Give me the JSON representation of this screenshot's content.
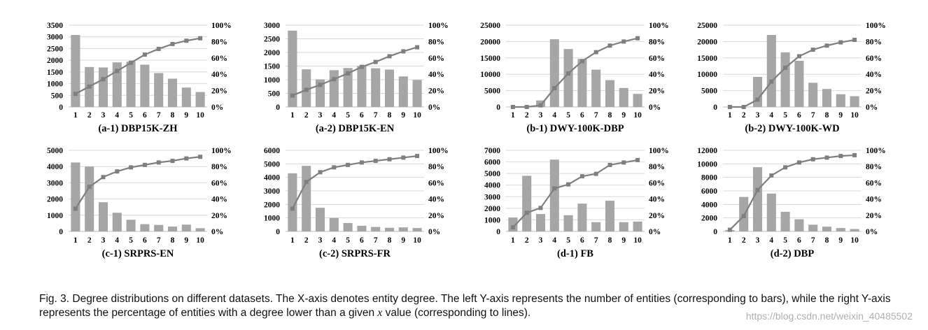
{
  "chart_data": [
    {
      "type": "bar",
      "title": "(a-1) DBP15K-ZH",
      "categories": [
        "1",
        "2",
        "3",
        "4",
        "5",
        "6",
        "7",
        "8",
        "9",
        "10"
      ],
      "ylim": [
        0,
        3500
      ],
      "yticks": [
        "0",
        "500",
        "1000",
        "1500",
        "2000",
        "2500",
        "3000",
        "3500"
      ],
      "y2lim": [
        0,
        100
      ],
      "y2ticks": [
        "0%",
        "20%",
        "40%",
        "60%",
        "80%",
        "100%"
      ],
      "series": [
        {
          "kind": "bar",
          "values": [
            3080,
            1710,
            1690,
            1910,
            1940,
            1810,
            1450,
            1210,
            830,
            640
          ]
        },
        {
          "kind": "line",
          "values": [
            16,
            25,
            34,
            44,
            54,
            64,
            71,
            77,
            81,
            84
          ]
        }
      ]
    },
    {
      "type": "bar",
      "title": "(a-2) DBP15K-EN",
      "categories": [
        "1",
        "2",
        "3",
        "4",
        "5",
        "6",
        "7",
        "8",
        "9",
        "10"
      ],
      "ylim": [
        0,
        3000
      ],
      "yticks": [
        "0",
        "500",
        "1000",
        "1500",
        "2000",
        "2500",
        "3000"
      ],
      "y2lim": [
        0,
        100
      ],
      "y2ticks": [
        "0%",
        "20%",
        "40%",
        "60%",
        "80%",
        "100%"
      ],
      "series": [
        {
          "kind": "bar",
          "values": [
            2800,
            1380,
            1010,
            1350,
            1430,
            1510,
            1420,
            1370,
            1120,
            990
          ]
        },
        {
          "kind": "line",
          "values": [
            14,
            21,
            27,
            34,
            41,
            49,
            55,
            62,
            68,
            73
          ]
        }
      ]
    },
    {
      "type": "bar",
      "title": "(b-1) DWY-100K-DBP",
      "categories": [
        "1",
        "2",
        "3",
        "4",
        "5",
        "6",
        "7",
        "8",
        "9",
        "10"
      ],
      "ylim": [
        0,
        25000
      ],
      "yticks": [
        "0",
        "5000",
        "10000",
        "15000",
        "20000",
        "25000"
      ],
      "y2lim": [
        0,
        100
      ],
      "y2ticks": [
        "0%",
        "20%",
        "40%",
        "60%",
        "80%",
        "100%"
      ],
      "series": [
        {
          "kind": "bar",
          "values": [
            0,
            0,
            2000,
            20700,
            17700,
            14700,
            11400,
            8200,
            5800,
            4000
          ]
        },
        {
          "kind": "line",
          "values": [
            0,
            0,
            2,
            23,
            41,
            56,
            67,
            75,
            80,
            84
          ]
        }
      ]
    },
    {
      "type": "bar",
      "title": "(b-2) DWY-100K-WD",
      "categories": [
        "1",
        "2",
        "3",
        "4",
        "5",
        "6",
        "7",
        "8",
        "9",
        "10"
      ],
      "ylim": [
        0,
        25000
      ],
      "yticks": [
        "0",
        "5000",
        "10000",
        "15000",
        "20000",
        "25000"
      ],
      "y2lim": [
        0,
        100
      ],
      "y2ticks": [
        "0%",
        "20%",
        "40%",
        "60%",
        "80%",
        "100%"
      ],
      "series": [
        {
          "kind": "bar",
          "values": [
            0,
            0,
            9200,
            22000,
            16700,
            14100,
            7400,
            5500,
            3900,
            3300
          ]
        },
        {
          "kind": "line",
          "values": [
            0,
            0,
            9,
            31,
            48,
            62,
            70,
            75,
            79,
            82
          ]
        }
      ]
    },
    {
      "type": "bar",
      "title": "(c-1) SRPRS-EN",
      "categories": [
        "1",
        "2",
        "3",
        "4",
        "5",
        "6",
        "7",
        "8",
        "9",
        "10"
      ],
      "ylim": [
        0,
        5000
      ],
      "yticks": [
        "0",
        "1000",
        "2000",
        "3000",
        "4000",
        "5000"
      ],
      "y2lim": [
        0,
        100
      ],
      "y2ticks": [
        "0%",
        "20%",
        "40%",
        "60%",
        "80%",
        "100%"
      ],
      "series": [
        {
          "kind": "bar",
          "values": [
            4250,
            4000,
            1800,
            1150,
            720,
            450,
            400,
            300,
            420,
            200
          ]
        },
        {
          "kind": "line",
          "values": [
            28,
            55,
            67,
            74,
            79,
            82,
            85,
            87,
            90,
            92
          ]
        }
      ]
    },
    {
      "type": "bar",
      "title": "(c-2) SRPRS-FR",
      "categories": [
        "1",
        "2",
        "3",
        "4",
        "5",
        "6",
        "7",
        "8",
        "9",
        "10"
      ],
      "ylim": [
        0,
        6000
      ],
      "yticks": [
        "0",
        "1000",
        "2000",
        "3000",
        "4000",
        "5000",
        "6000"
      ],
      "y2lim": [
        0,
        100
      ],
      "y2ticks": [
        "0%",
        "20%",
        "40%",
        "60%",
        "80%",
        "100%"
      ],
      "series": [
        {
          "kind": "bar",
          "values": [
            4300,
            4850,
            1750,
            1000,
            620,
            420,
            330,
            270,
            300,
            250
          ]
        },
        {
          "kind": "line",
          "values": [
            28,
            61,
            73,
            79,
            82,
            85,
            87,
            89,
            91,
            93
          ]
        }
      ]
    },
    {
      "type": "bar",
      "title": "(d-1) FB",
      "categories": [
        "1",
        "2",
        "3",
        "4",
        "5",
        "6",
        "7",
        "8",
        "9",
        "10"
      ],
      "ylim": [
        0,
        7000
      ],
      "yticks": [
        "0",
        "1000",
        "2000",
        "3000",
        "4000",
        "5000",
        "6000",
        "7000"
      ],
      "y2lim": [
        0,
        100
      ],
      "y2ticks": [
        "0%",
        "20%",
        "40%",
        "60%",
        "80%",
        "100%"
      ],
      "series": [
        {
          "kind": "bar",
          "values": [
            1200,
            4800,
            1500,
            6200,
            1400,
            2400,
            800,
            2650,
            800,
            850
          ]
        },
        {
          "kind": "line",
          "values": [
            5,
            23,
            29,
            53,
            58,
            68,
            71,
            82,
            85,
            88
          ]
        }
      ]
    },
    {
      "type": "bar",
      "title": "(d-2) DBP",
      "categories": [
        "1",
        "2",
        "3",
        "4",
        "5",
        "6",
        "7",
        "8",
        "9",
        "10"
      ],
      "ylim": [
        0,
        12000
      ],
      "yticks": [
        "0",
        "2000",
        "4000",
        "6000",
        "8000",
        "10000",
        "12000"
      ],
      "y2lim": [
        0,
        100
      ],
      "y2ticks": [
        "0%",
        "20%",
        "40%",
        "60%",
        "80%",
        "100%"
      ],
      "series": [
        {
          "kind": "bar",
          "values": [
            200,
            5100,
            9500,
            5600,
            2900,
            1800,
            1000,
            700,
            500,
            350
          ]
        },
        {
          "kind": "line",
          "values": [
            2,
            19,
            51,
            69,
            79,
            85,
            89,
            91,
            93,
            94
          ]
        }
      ]
    }
  ],
  "caption": {
    "part1": "Fig. 3. Degree distributions on different datasets. The X-axis denotes entity degree. The left Y-axis represents the number of entities (corresponding to bars), while the right Y-axis represents the percentage of entities with a degree lower than a given ",
    "var": "x",
    "part2": " value (corresponding to lines)."
  },
  "watermark": "https://blog.csdn.net/weixin_40485502",
  "colors": {
    "bar": "#a6a6a6",
    "line": "#7f7f7f",
    "grid": "#d9d9d9",
    "axis": "#bfbfbf"
  }
}
